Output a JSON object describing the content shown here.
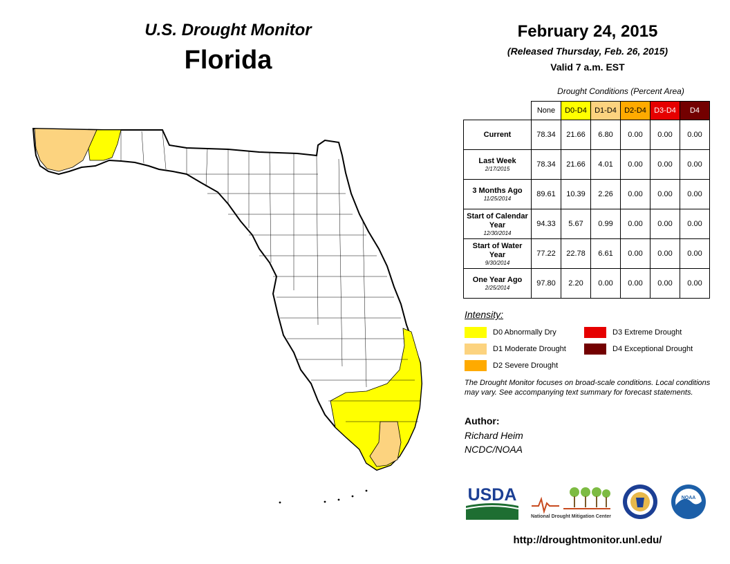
{
  "header": {
    "monitor": "U.S. Drought Monitor",
    "state": "Florida",
    "date": "February 24, 2015",
    "released": "(Released Thursday, Feb. 26, 2015)",
    "valid": "Valid 7 a.m. EST"
  },
  "table": {
    "title": "Drought Conditions (Percent Area)",
    "columns": [
      "None",
      "D0-D4",
      "D1-D4",
      "D2-D4",
      "D3-D4",
      "D4"
    ],
    "rows": [
      {
        "label": "Current",
        "date": "",
        "values": [
          "78.34",
          "21.66",
          "6.80",
          "0.00",
          "0.00",
          "0.00"
        ]
      },
      {
        "label": "Last Week",
        "date": "2/17/2015",
        "values": [
          "78.34",
          "21.66",
          "4.01",
          "0.00",
          "0.00",
          "0.00"
        ]
      },
      {
        "label": "3 Months Ago",
        "date": "11/25/2014",
        "values": [
          "89.61",
          "10.39",
          "2.26",
          "0.00",
          "0.00",
          "0.00"
        ]
      },
      {
        "label": "Start of Calendar Year",
        "date": "12/30/2014",
        "values": [
          "94.33",
          "5.67",
          "0.99",
          "0.00",
          "0.00",
          "0.00"
        ]
      },
      {
        "label": "Start of Water Year",
        "date": "9/30/2014",
        "values": [
          "77.22",
          "22.78",
          "6.61",
          "0.00",
          "0.00",
          "0.00"
        ]
      },
      {
        "label": "One Year Ago",
        "date": "2/25/2014",
        "values": [
          "97.80",
          "2.20",
          "0.00",
          "0.00",
          "0.00",
          "0.00"
        ]
      }
    ]
  },
  "intensity": {
    "title": "Intensity:",
    "items": [
      {
        "label": "D0 Abnormally Dry",
        "color": "#ffff00"
      },
      {
        "label": "D1 Moderate Drought",
        "color": "#fcd37f"
      },
      {
        "label": "D2 Severe Drought",
        "color": "#ffaa00"
      },
      {
        "label": "D3 Extreme Drought",
        "color": "#e60000"
      },
      {
        "label": "D4 Exceptional Drought",
        "color": "#730000"
      }
    ]
  },
  "note": "The Drought Monitor focuses on broad-scale conditions. Local conditions may vary. See accompanying text summary for forecast statements.",
  "author": {
    "heading": "Author:",
    "name": "Richard Heim",
    "org": "NCDC/NOAA"
  },
  "logos": {
    "usda": "USDA",
    "ndmc": "National Drought Mitigation Center",
    "noaa": "NOAA"
  },
  "url": "http://droughtmonitor.unl.edu/"
}
